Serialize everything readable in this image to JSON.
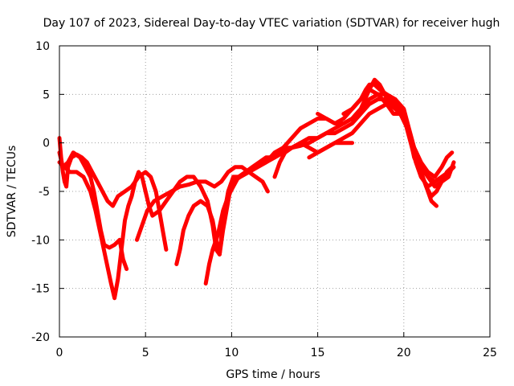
{
  "chart_data": {
    "type": "scatter",
    "title": "Day 107 of 2023, Sidereal Day-to-day VTEC variation (SDTVAR) for receiver hugh",
    "xlabel": "GPS time / hours",
    "ylabel": "SDTVAR / TECUs",
    "xlim": [
      0,
      25
    ],
    "ylim": [
      -20,
      10
    ],
    "xticks": [
      0,
      5,
      10,
      15,
      20,
      25
    ],
    "yticks": [
      -20,
      -15,
      -10,
      -5,
      0,
      5,
      10
    ],
    "grid": true,
    "color": "#ff0000",
    "marker": "plus",
    "series": [
      {
        "points": [
          [
            0.0,
            0.5
          ],
          [
            0.1,
            -1.5
          ],
          [
            0.2,
            -3.0
          ],
          [
            0.3,
            -4.0
          ],
          [
            0.4,
            -4.5
          ],
          [
            0.5,
            -2.5
          ],
          [
            0.7,
            -1.5
          ],
          [
            1.0,
            -1.2
          ],
          [
            1.3,
            -1.5
          ],
          [
            1.6,
            -2.0
          ],
          [
            1.9,
            -3.0
          ],
          [
            2.2,
            -4.0
          ],
          [
            2.5,
            -5.0
          ],
          [
            2.8,
            -6.0
          ],
          [
            3.1,
            -6.5
          ],
          [
            3.4,
            -5.5
          ],
          [
            3.8,
            -5.0
          ],
          [
            4.2,
            -4.5
          ],
          [
            4.6,
            -3.5
          ],
          [
            5.0,
            -3.0
          ],
          [
            5.3,
            -3.5
          ],
          [
            5.6,
            -5.0
          ],
          [
            5.8,
            -7.0
          ],
          [
            6.0,
            -9.0
          ],
          [
            6.2,
            -11.0
          ]
        ]
      },
      {
        "points": [
          [
            0.0,
            -1.0
          ],
          [
            0.2,
            -2.5
          ],
          [
            0.5,
            -2.0
          ],
          [
            0.8,
            -1.0
          ],
          [
            1.2,
            -1.5
          ],
          [
            1.5,
            -2.5
          ],
          [
            1.8,
            -3.5
          ],
          [
            2.0,
            -5.0
          ],
          [
            2.2,
            -7.0
          ],
          [
            2.4,
            -9.0
          ],
          [
            2.6,
            -10.5
          ],
          [
            2.9,
            -10.8
          ],
          [
            3.2,
            -10.5
          ],
          [
            3.5,
            -10.0
          ],
          [
            3.7,
            -12.0
          ],
          [
            3.9,
            -13.0
          ]
        ]
      },
      {
        "points": [
          [
            0.0,
            -2.0
          ],
          [
            0.3,
            -2.5
          ],
          [
            0.6,
            -3.0
          ],
          [
            1.0,
            -3.0
          ],
          [
            1.4,
            -3.5
          ],
          [
            1.8,
            -5.0
          ],
          [
            2.1,
            -7.0
          ],
          [
            2.4,
            -9.5
          ],
          [
            2.7,
            -12.0
          ],
          [
            3.0,
            -14.5
          ],
          [
            3.2,
            -16.0
          ],
          [
            3.4,
            -14.0
          ],
          [
            3.6,
            -11.0
          ],
          [
            3.8,
            -8.0
          ],
          [
            4.0,
            -6.5
          ],
          [
            4.2,
            -5.5
          ],
          [
            4.4,
            -4.0
          ],
          [
            4.6,
            -3.0
          ],
          [
            4.8,
            -3.5
          ],
          [
            5.0,
            -5.0
          ],
          [
            5.2,
            -6.5
          ],
          [
            5.4,
            -7.5
          ],
          [
            5.8,
            -7.0
          ],
          [
            6.2,
            -6.0
          ],
          [
            6.6,
            -5.0
          ],
          [
            7.0,
            -4.0
          ],
          [
            7.4,
            -3.5
          ],
          [
            7.8,
            -3.5
          ],
          [
            8.2,
            -4.5
          ],
          [
            8.6,
            -6.0
          ],
          [
            8.9,
            -8.5
          ],
          [
            9.1,
            -11.0
          ],
          [
            9.3,
            -11.5
          ],
          [
            9.5,
            -9.0
          ],
          [
            9.7,
            -7.0
          ],
          [
            9.9,
            -5.0
          ],
          [
            10.1,
            -4.0
          ],
          [
            10.5,
            -3.5
          ],
          [
            11.0,
            -3.0
          ],
          [
            11.5,
            -2.5
          ],
          [
            12.0,
            -2.0
          ],
          [
            12.5,
            -1.5
          ],
          [
            13.0,
            -0.5
          ],
          [
            13.5,
            0.5
          ],
          [
            14.0,
            1.5
          ],
          [
            14.5,
            2.0
          ],
          [
            15.0,
            2.5
          ],
          [
            15.5,
            2.5
          ],
          [
            16.0,
            2.0
          ],
          [
            16.5,
            2.5
          ],
          [
            17.0,
            3.5
          ],
          [
            17.5,
            4.5
          ],
          [
            17.8,
            5.5
          ],
          [
            18.0,
            6.0
          ],
          [
            18.3,
            6.0
          ],
          [
            18.6,
            5.5
          ],
          [
            19.0,
            5.0
          ],
          [
            19.4,
            4.5
          ],
          [
            19.8,
            3.5
          ],
          [
            20.1,
            2.5
          ],
          [
            20.4,
            0.5
          ],
          [
            20.7,
            -1.5
          ],
          [
            21.0,
            -3.0
          ],
          [
            21.3,
            -4.5
          ],
          [
            21.6,
            -5.5
          ],
          [
            21.9,
            -5.0
          ],
          [
            22.2,
            -4.0
          ],
          [
            22.5,
            -3.0
          ],
          [
            22.8,
            -2.5
          ]
        ]
      },
      {
        "points": [
          [
            4.5,
            -10.0
          ],
          [
            4.8,
            -8.5
          ],
          [
            5.1,
            -7.0
          ],
          [
            5.5,
            -6.0
          ],
          [
            6.0,
            -5.5
          ],
          [
            6.5,
            -5.0
          ],
          [
            7.0,
            -4.5
          ],
          [
            7.5,
            -4.3
          ],
          [
            8.0,
            -4.0
          ],
          [
            8.5,
            -4.0
          ],
          [
            9.0,
            -4.5
          ],
          [
            9.4,
            -4.0
          ],
          [
            9.8,
            -3.0
          ],
          [
            10.2,
            -2.5
          ],
          [
            10.6,
            -2.5
          ],
          [
            11.0,
            -3.0
          ],
          [
            11.4,
            -3.5
          ],
          [
            11.8,
            -4.0
          ],
          [
            12.1,
            -5.0
          ]
        ]
      },
      {
        "points": [
          [
            6.8,
            -12.5
          ],
          [
            7.0,
            -11.0
          ],
          [
            7.2,
            -9.0
          ],
          [
            7.5,
            -7.5
          ],
          [
            7.8,
            -6.5
          ],
          [
            8.2,
            -6.0
          ],
          [
            8.6,
            -6.5
          ],
          [
            8.9,
            -8.0
          ],
          [
            9.1,
            -10.0
          ],
          [
            9.3,
            -11.5
          ],
          [
            9.5,
            -8.0
          ],
          [
            9.8,
            -5.0
          ],
          [
            10.1,
            -3.5
          ],
          [
            10.5,
            -3.5
          ],
          [
            11.0,
            -3.0
          ],
          [
            11.5,
            -2.5
          ],
          [
            12.0,
            -2.0
          ],
          [
            12.5,
            -1.0
          ],
          [
            13.0,
            -0.5
          ],
          [
            13.5,
            -0.5
          ],
          [
            14.0,
            0.0
          ],
          [
            14.5,
            0.5
          ],
          [
            15.0,
            0.5
          ],
          [
            15.5,
            1.0
          ],
          [
            16.0,
            1.0
          ],
          [
            16.5,
            1.5
          ],
          [
            17.0,
            2.0
          ],
          [
            17.5,
            3.0
          ],
          [
            18.0,
            4.0
          ],
          [
            18.5,
            4.5
          ],
          [
            19.0,
            4.5
          ],
          [
            19.5,
            4.0
          ],
          [
            20.0,
            3.0
          ],
          [
            20.3,
            1.0
          ],
          [
            20.6,
            -1.0
          ],
          [
            21.0,
            -2.5
          ],
          [
            21.4,
            -3.5
          ],
          [
            21.8,
            -4.0
          ],
          [
            22.2,
            -3.5
          ],
          [
            22.6,
            -3.0
          ],
          [
            22.9,
            -2.5
          ]
        ]
      },
      {
        "points": [
          [
            8.5,
            -14.5
          ],
          [
            8.7,
            -12.5
          ],
          [
            8.9,
            -11.0
          ],
          [
            9.2,
            -9.5
          ],
          [
            9.5,
            -7.0
          ],
          [
            9.8,
            -5.5
          ],
          [
            10.1,
            -4.5
          ],
          [
            10.4,
            -3.5
          ],
          [
            10.8,
            -3.0
          ],
          [
            11.2,
            -2.5
          ],
          [
            11.6,
            -2.0
          ],
          [
            12.0,
            -1.5
          ],
          [
            12.5,
            -1.5
          ],
          [
            13.0,
            -1.0
          ],
          [
            13.5,
            -0.5
          ],
          [
            14.0,
            0.0
          ],
          [
            14.5,
            -0.5
          ],
          [
            15.0,
            -1.0
          ],
          [
            15.5,
            -0.5
          ],
          [
            16.0,
            0.0
          ],
          [
            16.5,
            0.0
          ],
          [
            17.0,
            0.0
          ]
        ]
      },
      {
        "points": [
          [
            12.5,
            -3.5
          ],
          [
            12.8,
            -2.0
          ],
          [
            13.1,
            -1.0
          ],
          [
            13.5,
            -0.5
          ],
          [
            14.0,
            -0.3
          ],
          [
            14.5,
            0.0
          ],
          [
            15.0,
            0.5
          ],
          [
            15.5,
            1.0
          ],
          [
            16.0,
            1.5
          ],
          [
            16.5,
            2.0
          ],
          [
            17.0,
            2.5
          ],
          [
            17.5,
            3.5
          ],
          [
            18.0,
            4.5
          ],
          [
            18.5,
            5.0
          ],
          [
            19.0,
            5.0
          ],
          [
            19.5,
            4.5
          ],
          [
            20.0,
            3.0
          ],
          [
            20.3,
            1.0
          ],
          [
            20.6,
            -1.5
          ],
          [
            21.0,
            -3.0
          ],
          [
            21.3,
            -4.5
          ],
          [
            21.6,
            -6.0
          ],
          [
            21.9,
            -6.5
          ]
        ]
      },
      {
        "points": [
          [
            14.5,
            -1.5
          ],
          [
            15.0,
            -1.0
          ],
          [
            15.5,
            -0.5
          ],
          [
            16.0,
            0.0
          ],
          [
            16.5,
            0.5
          ],
          [
            17.0,
            1.0
          ],
          [
            17.5,
            2.0
          ],
          [
            18.0,
            3.0
          ],
          [
            18.5,
            3.5
          ],
          [
            19.0,
            4.0
          ],
          [
            19.5,
            4.5
          ],
          [
            20.0,
            3.5
          ],
          [
            20.3,
            1.5
          ],
          [
            20.6,
            -0.5
          ],
          [
            21.0,
            -2.0
          ],
          [
            21.4,
            -3.0
          ],
          [
            21.8,
            -3.5
          ],
          [
            22.2,
            -2.5
          ],
          [
            22.5,
            -1.5
          ],
          [
            22.8,
            -1.0
          ]
        ]
      },
      {
        "points": [
          [
            15.0,
            3.0
          ],
          [
            15.5,
            2.5
          ],
          [
            16.0,
            2.0
          ],
          [
            16.5,
            2.0
          ],
          [
            17.0,
            2.5
          ],
          [
            17.5,
            3.5
          ],
          [
            18.0,
            5.5
          ],
          [
            18.3,
            6.5
          ],
          [
            18.6,
            6.0
          ],
          [
            18.9,
            5.0
          ],
          [
            19.2,
            4.0
          ],
          [
            19.5,
            3.5
          ],
          [
            19.8,
            3.0
          ],
          [
            20.2,
            1.5
          ],
          [
            20.6,
            -0.5
          ],
          [
            21.0,
            -2.0
          ],
          [
            21.4,
            -3.5
          ],
          [
            21.8,
            -4.5
          ],
          [
            22.2,
            -4.0
          ],
          [
            22.6,
            -3.5
          ],
          [
            22.9,
            -2.0
          ]
        ]
      },
      {
        "points": [
          [
            16.5,
            3.0
          ],
          [
            17.0,
            3.5
          ],
          [
            17.5,
            4.5
          ],
          [
            18.0,
            5.5
          ],
          [
            18.5,
            5.0
          ],
          [
            19.0,
            4.0
          ],
          [
            19.4,
            3.0
          ],
          [
            19.8,
            3.0
          ],
          [
            20.1,
            2.0
          ],
          [
            20.4,
            0.0
          ],
          [
            20.7,
            -2.0
          ],
          [
            21.0,
            -3.5
          ],
          [
            21.4,
            -4.5
          ],
          [
            21.8,
            -4.0
          ],
          [
            22.2,
            -3.5
          ],
          [
            22.6,
            -3.0
          ]
        ]
      }
    ]
  }
}
